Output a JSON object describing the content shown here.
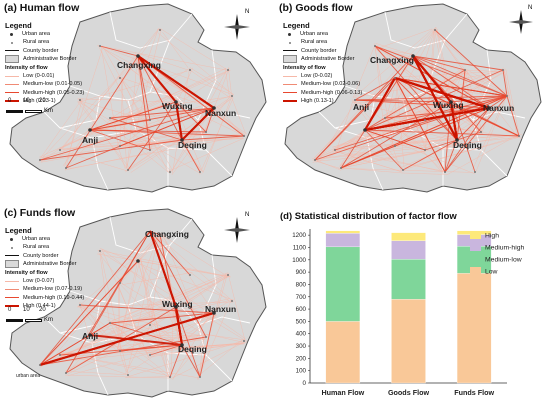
{
  "colors": {
    "map_fill": "#d8d8d8",
    "border": "#555555",
    "flow_low": "#f6b8a8",
    "flow_mid_low": "#f08a74",
    "flow_mid_high": "#e8482f",
    "flow_high": "#cc1400",
    "bar_high": "#fde97a",
    "bar_medium_high": "#c9b6de",
    "bar_medium_low": "#7fd69a",
    "bar_low": "#f9c898"
  },
  "legend_common": {
    "title": "Legend",
    "urban": "Urban area",
    "rural": "Rural area",
    "county_border": "County border",
    "admin_border": "Administrative Border",
    "intensity_title": "Intensity of flow",
    "scale_0": "0",
    "scale_10": "10",
    "scale_20": "20",
    "scale_unit": "Km",
    "north": "N"
  },
  "panels": {
    "a": {
      "title": "(a) Human flow",
      "levels": [
        "Low (0-0.01)",
        "Medium-low (0.01-0.05)",
        "Medium-high (0.05-0.23)",
        "High (0.23-1)"
      ]
    },
    "b": {
      "title": "(b) Goods flow",
      "levels": [
        "Low (0-0.02)",
        "Medium-low (0.02-0.06)",
        "Medium-high (0.06-0.13)",
        "High (0.13-1)"
      ]
    },
    "c": {
      "title": "(c) Funds flow",
      "levels": [
        "Low (0-0.07)",
        "Medium-low (0.07-0.19)",
        "Medium-high (0.19-0.44)",
        "High (0.44-1)"
      ]
    }
  },
  "cities": {
    "changxing": "Changxing",
    "wuxing": "Wuxing",
    "nanxun": "Nanxun",
    "anji": "Anji",
    "deqing": "Deqing",
    "urban_area_label": "urban area"
  },
  "chart_data": {
    "type": "bar",
    "title": "(d) Statistical distribution of factor flow",
    "categories": [
      "Human Flow",
      "Goods Flow",
      "Funds Flow"
    ],
    "series": [
      {
        "name": "Low",
        "values": [
          500,
          680,
          890
        ]
      },
      {
        "name": "Medium-low",
        "values": [
          605,
          325,
          220
        ]
      },
      {
        "name": "Medium-high",
        "values": [
          110,
          150,
          95
        ]
      },
      {
        "name": "High",
        "values": [
          20,
          65,
          30
        ]
      }
    ],
    "ylim": [
      0,
      1250
    ],
    "yticks": [
      0,
      100,
      200,
      300,
      400,
      500,
      600,
      700,
      800,
      900,
      1000,
      1100,
      1200
    ],
    "legend_position": "top-right",
    "legend_order": [
      "High",
      "Medium-high",
      "Medium-low",
      "Low"
    ]
  }
}
